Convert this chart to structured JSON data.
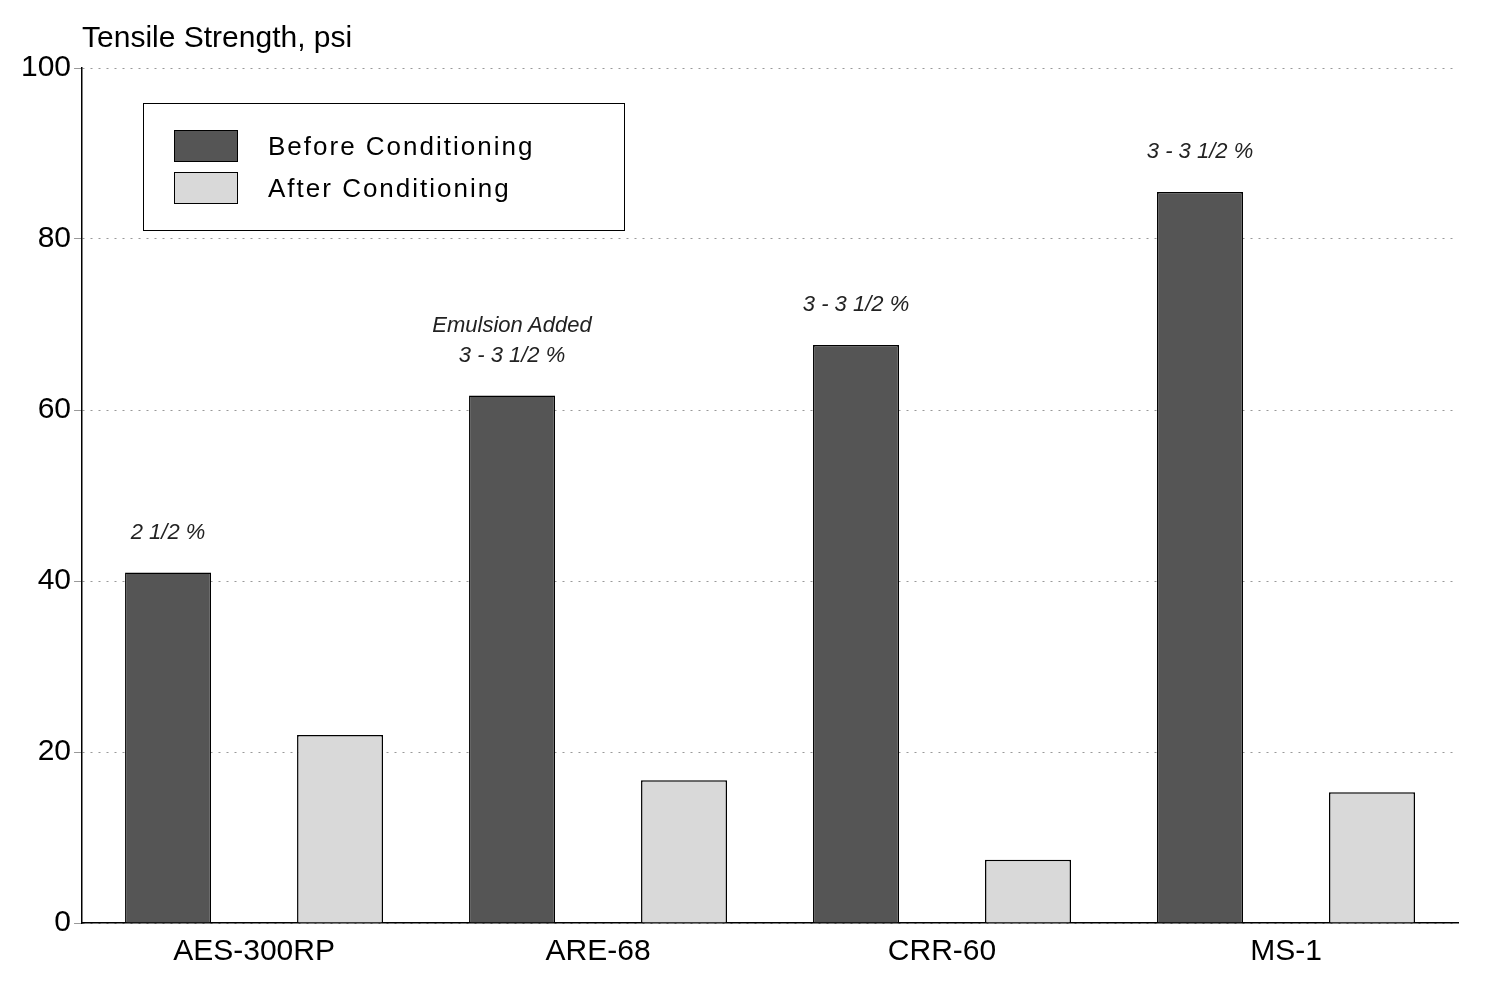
{
  "chart_data": {
    "type": "bar",
    "ylabel": "Tensile Strength, psi",
    "categories": [
      "AES-300RP",
      "ARE-68",
      "CRR-60",
      "MS-1"
    ],
    "series": [
      {
        "name": "Before Conditioning",
        "color": "#555555",
        "values": [
          41,
          61.7,
          67.6,
          85.5
        ]
      },
      {
        "name": "After Conditioning",
        "color": "#d9d9d9",
        "values": [
          22,
          16.7,
          7.4,
          15.3
        ]
      }
    ],
    "ylim": [
      0,
      100
    ],
    "yticks": [
      0,
      20,
      40,
      60,
      80,
      100
    ],
    "grid": "y",
    "legend": "top left",
    "annotations": [
      "2 1/2 %",
      "Emulsion Added\n3 - 3 1/2 %",
      "3 - 3 1/2 %",
      "3 - 3 1/2 %"
    ]
  }
}
